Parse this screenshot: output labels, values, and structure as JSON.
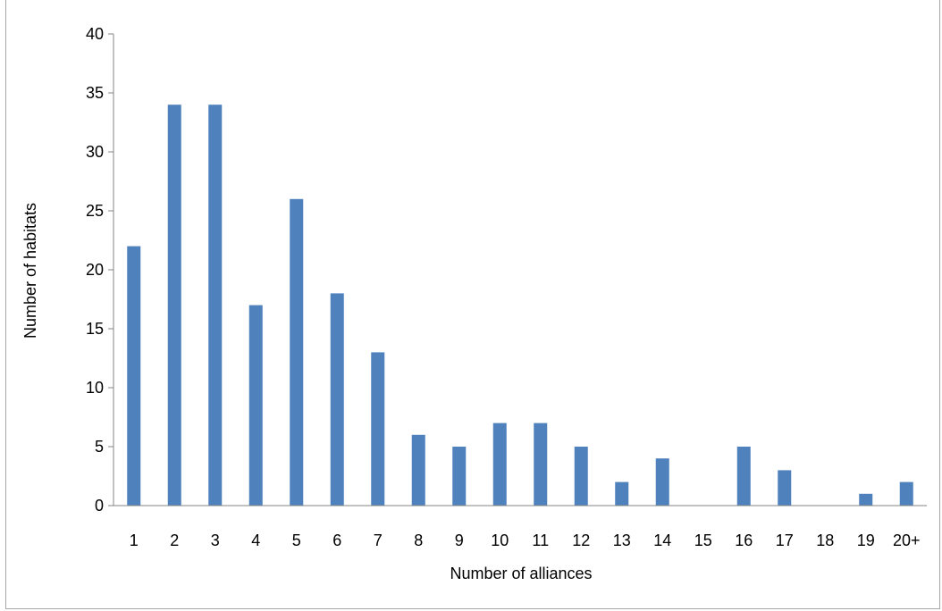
{
  "chart_data": {
    "type": "bar",
    "title": "",
    "xlabel": "Number of alliances",
    "ylabel": "Number of habitats",
    "categories": [
      "1",
      "2",
      "3",
      "4",
      "5",
      "6",
      "7",
      "8",
      "9",
      "10",
      "11",
      "12",
      "13",
      "14",
      "15",
      "16",
      "17",
      "18",
      "19",
      "20+"
    ],
    "values": [
      22,
      34,
      34,
      17,
      26,
      18,
      13,
      6,
      5,
      7,
      7,
      5,
      2,
      4,
      0,
      5,
      3,
      0,
      1,
      2
    ],
    "ylim": [
      0,
      40
    ],
    "yticks": [
      0,
      5,
      10,
      15,
      20,
      25,
      30,
      35,
      40
    ],
    "grid": false,
    "legend": "none",
    "bar_color": "#4f81bd",
    "axis_color": "#868686"
  }
}
